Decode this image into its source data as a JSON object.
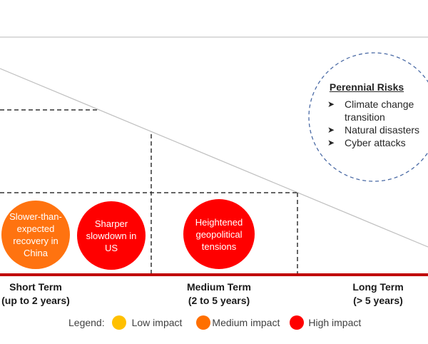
{
  "diagram": {
    "perennial_risks": {
      "title": "Perennial Risks",
      "items": [
        "Climate change transition",
        "Natural disasters",
        "Cyber attacks"
      ],
      "item_lines": [
        [
          "Climate change",
          "transition"
        ],
        [
          "Natural disasters"
        ],
        [
          "Cyber attacks"
        ]
      ],
      "bullet_icon": "arrow-bullet-icon"
    },
    "risks": [
      {
        "lines": [
          "Slower-than-",
          "expected",
          "recovery in",
          "China"
        ],
        "impact": "medium",
        "term": "short"
      },
      {
        "lines": [
          "Sharper",
          "slowdown in",
          "US"
        ],
        "impact": "high",
        "term": "short"
      },
      {
        "lines": [
          "Heightened",
          "geopolitical",
          "tensions"
        ],
        "impact": "high",
        "term": "medium"
      }
    ],
    "terms": [
      {
        "name": "Short Term",
        "range": "(up to 2 years)"
      },
      {
        "name": "Medium Term",
        "range": "(2 to 5 years)"
      },
      {
        "name": "Long Term",
        "range": "(> 5 years)"
      }
    ],
    "legend": {
      "label": "Legend:",
      "items": [
        {
          "label": "Low impact",
          "color": "#FFC000"
        },
        {
          "label": "Medium impact",
          "color": "#FF6F00"
        },
        {
          "label": "High impact",
          "color": "#FF0000"
        }
      ]
    },
    "colors": {
      "axis": "#C00000",
      "medium": "#FF7310",
      "high": "#FF0000",
      "perennial_border": "#4A6AA5"
    }
  }
}
